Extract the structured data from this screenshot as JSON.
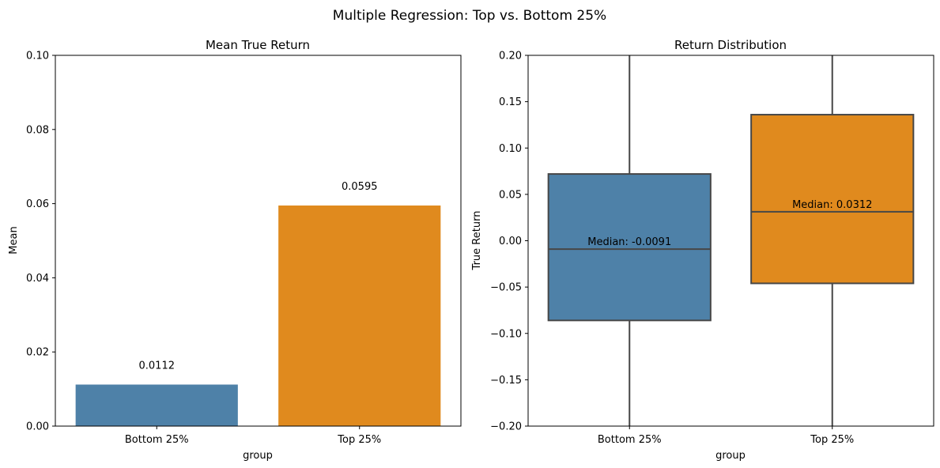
{
  "figure": {
    "title": "Multiple Regression: Top vs. Bottom 25%"
  },
  "colors": {
    "bottom": "#4e81a8",
    "top": "#e08a1e",
    "box_edge": "#474747",
    "axis": "#000000"
  },
  "chart_data": [
    {
      "type": "bar",
      "title": "Mean True Return",
      "xlabel": "group",
      "ylabel": "Mean",
      "categories": [
        "Bottom 25%",
        "Top 25%"
      ],
      "values": [
        0.0112,
        0.0595
      ],
      "value_labels": [
        "0.0112",
        "0.0595"
      ],
      "ylim": [
        0.0,
        0.1
      ],
      "yticks": [
        0.0,
        0.02,
        0.04,
        0.06,
        0.08,
        0.1
      ],
      "ytick_labels": [
        "0.00",
        "0.02",
        "0.04",
        "0.06",
        "0.08",
        "0.10"
      ],
      "grid": false
    },
    {
      "type": "box",
      "title": "Return Distribution",
      "xlabel": "group",
      "ylabel": "True Return",
      "categories": [
        "Bottom 25%",
        "Top 25%"
      ],
      "boxes": [
        {
          "q1": -0.086,
          "median": -0.0091,
          "q3": 0.072,
          "whisker_low": -0.2,
          "whisker_high": 0.2,
          "label": "Median: -0.0091"
        },
        {
          "q1": -0.046,
          "median": 0.0312,
          "q3": 0.136,
          "whisker_low": -0.2,
          "whisker_high": 0.2,
          "label": "Median: 0.0312"
        }
      ],
      "ylim": [
        -0.2,
        0.2
      ],
      "yticks": [
        -0.2,
        -0.15,
        -0.1,
        -0.05,
        0.0,
        0.05,
        0.1,
        0.15,
        0.2
      ],
      "ytick_labels": [
        "−0.20",
        "−0.15",
        "−0.10",
        "−0.05",
        "0.00",
        "0.05",
        "0.10",
        "0.15",
        "0.20"
      ],
      "grid": false
    }
  ]
}
